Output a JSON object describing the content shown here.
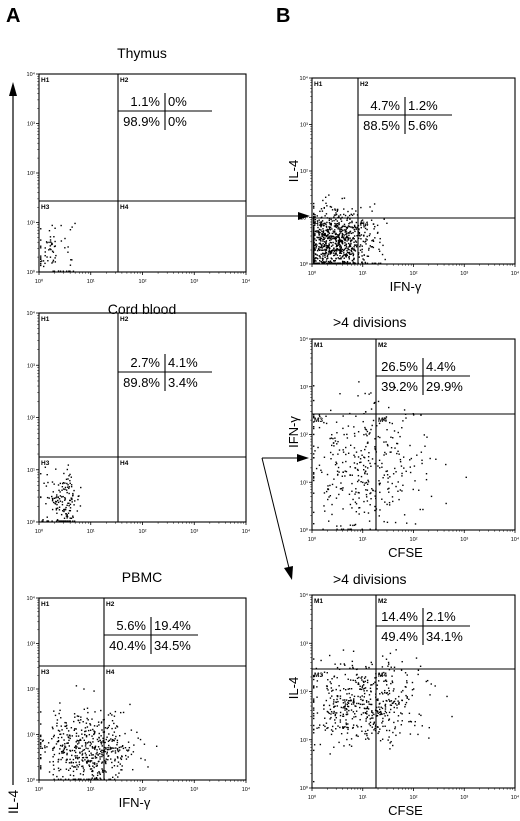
{
  "panel_labels": [
    "A",
    "B"
  ],
  "left_axis_label": "IL-4",
  "chart_data": [
    {
      "type": "scatter",
      "title": "Thymus",
      "xlabel": "",
      "ylabel": "",
      "xscale": "log",
      "yscale": "log",
      "xlim": [
        1,
        10000
      ],
      "ylim": [
        1,
        10000
      ],
      "gates": [
        "H1",
        "H2",
        "H3",
        "H4"
      ],
      "quadrant_percents": [
        "1.1%",
        "0%",
        "98.9%",
        "0%"
      ],
      "tick_labels_x": [
        "10⁰",
        "10¹",
        "10²",
        "10³",
        "10⁴"
      ],
      "tick_labels_y": [
        "10⁰",
        "10¹",
        "10²",
        "10³",
        "10⁴"
      ],
      "cluster": {
        "x_log_center": 0.25,
        "x_log_spread": 0.22,
        "y_log_center": 0.45,
        "y_log_spread": 0.35,
        "count": 70
      }
    },
    {
      "type": "scatter",
      "title": "Cord blood",
      "xlabel": "",
      "ylabel": "",
      "xscale": "log",
      "yscale": "log",
      "xlim": [
        1,
        10000
      ],
      "ylim": [
        1,
        10000
      ],
      "gates": [
        "H1",
        "H2",
        "H3",
        "H4"
      ],
      "quadrant_percents": [
        "2.7%",
        "4.1%",
        "89.8%",
        "3.4%"
      ],
      "tick_labels_x": [
        "10⁰",
        "10¹",
        "10²",
        "10³",
        "10⁴"
      ],
      "tick_labels_y": [
        "10⁰",
        "10¹",
        "10²",
        "10³",
        "10⁴"
      ],
      "cluster": {
        "x_log_center": 0.45,
        "x_log_spread": 0.18,
        "y_log_center": 0.4,
        "y_log_spread": 0.3,
        "count": 160
      }
    },
    {
      "type": "scatter",
      "title": "PBMC",
      "xlabel": "IFN-γ",
      "ylabel": "",
      "xscale": "log",
      "yscale": "log",
      "xlim": [
        1,
        10000
      ],
      "ylim": [
        1,
        10000
      ],
      "gates": [
        "H1",
        "H2",
        "H3",
        "H4"
      ],
      "quadrant_percents": [
        "5.6%",
        "19.4%",
        "40.4%",
        "34.5%"
      ],
      "tick_labels_x": [
        "10⁰",
        "10¹",
        "10²",
        "10³",
        "10⁴"
      ],
      "tick_labels_y": [
        "10⁰",
        "10¹",
        "10²",
        "10³",
        "10⁴"
      ],
      "cluster": {
        "x_log_center": 0.95,
        "x_log_spread": 0.45,
        "y_log_center": 0.7,
        "y_log_spread": 0.4,
        "count": 520
      }
    },
    {
      "type": "scatter",
      "title": "",
      "xlabel": "IFN-γ",
      "ylabel": "IL-4",
      "xscale": "log",
      "yscale": "log",
      "xlim": [
        1,
        10000
      ],
      "ylim": [
        1,
        10000
      ],
      "gates": [
        "H1",
        "H2",
        "H3",
        "H4"
      ],
      "quadrant_percents": [
        "4.7%",
        "1.2%",
        "88.5%",
        "5.6%"
      ],
      "tick_labels_x": [
        "10⁰",
        "10¹",
        "10²",
        "10³",
        "10⁴"
      ],
      "tick_labels_y": [
        "10⁰",
        "10¹",
        "10²",
        "10³",
        "10⁴"
      ],
      "cluster": {
        "x_log_center": 0.4,
        "x_log_spread": 0.4,
        "y_log_center": 0.5,
        "y_log_spread": 0.35,
        "count": 900
      }
    },
    {
      "type": "scatter",
      "title": ">4 divisions",
      "xlabel": "CFSE",
      "ylabel": "IFN-γ",
      "xscale": "log",
      "yscale": "log",
      "xlim": [
        1,
        10000
      ],
      "ylim": [
        1,
        10000
      ],
      "gates": [
        "M1",
        "M2",
        "M3",
        "M4"
      ],
      "quadrant_percents": [
        "26.5%",
        "4.4%",
        "39.2%",
        "29.9%"
      ],
      "tick_labels_x": [
        "10⁰",
        "10¹",
        "10²",
        "10³",
        "10⁴"
      ],
      "tick_labels_y": [
        "10⁰",
        "10¹",
        "10²",
        "10³",
        "10⁴"
      ],
      "cluster": {
        "x_log_center": 1.0,
        "x_log_spread": 0.6,
        "y_log_center": 1.4,
        "y_log_spread": 0.7,
        "count": 380
      }
    },
    {
      "type": "scatter",
      "title": ">4 divisions",
      "xlabel": "CFSE",
      "ylabel": "IL-4",
      "xscale": "log",
      "yscale": "log",
      "xlim": [
        1,
        10000
      ],
      "ylim": [
        1,
        10000
      ],
      "gates": [
        "M1",
        "M2",
        "M3",
        "M4"
      ],
      "quadrant_percents": [
        "14.4%",
        "2.1%",
        "49.4%",
        "34.1%"
      ],
      "tick_labels_x": [
        "10⁰",
        "10¹",
        "10²",
        "10³",
        "10⁴"
      ],
      "tick_labels_y": [
        "10⁰",
        "10¹",
        "10²",
        "10³",
        "10⁴"
      ],
      "cluster": {
        "x_log_center": 1.0,
        "x_log_spread": 0.55,
        "y_log_center": 1.75,
        "y_log_spread": 0.45,
        "count": 520
      }
    }
  ]
}
